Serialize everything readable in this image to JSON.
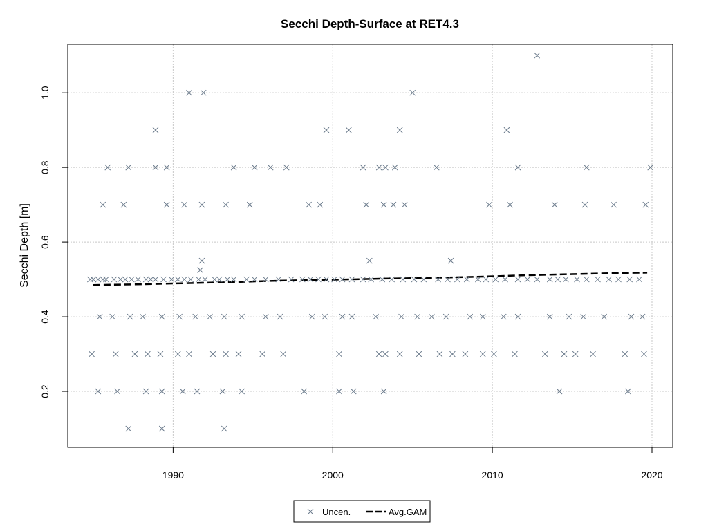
{
  "chart_data": {
    "type": "scatter",
    "title": "Secchi Depth-Surface at RET4.3",
    "xlabel": "",
    "ylabel": "Secchi Depth [m]",
    "xlim": [
      1983.4,
      2021.3
    ],
    "ylim": [
      0.05,
      1.13
    ],
    "x_ticks": [
      1990,
      2000,
      2010,
      2020
    ],
    "y_ticks": [
      0.2,
      0.4,
      0.6,
      0.8,
      1.0
    ],
    "y_tick_labels": [
      "0.2",
      "0.4",
      "0.6",
      "0.8",
      "1.0"
    ],
    "grid": true,
    "legend": {
      "position": "bottom-center",
      "entries": [
        "Uncen.",
        "Avg.GAM"
      ]
    },
    "colors": {
      "points": "#6b7b8c",
      "gam": "#000000",
      "grid": "#c8c8c8"
    },
    "series": [
      {
        "name": "Uncen.",
        "mode": "markers",
        "marker": "x",
        "x": [
          1984.8,
          1985.0,
          1985.3,
          1985.6,
          1985.8,
          1986.3,
          1986.7,
          1987.0,
          1987.4,
          1987.8,
          1988.3,
          1988.6,
          1988.9,
          1989.4,
          1989.9,
          1990.3,
          1990.7,
          1991.1,
          1991.6,
          1992.0,
          1992.6,
          1992.9,
          1993.4,
          1993.8,
          1994.6,
          1995.1,
          1995.8,
          1996.6,
          1997.4,
          1998.1,
          1998.6,
          1999.1,
          1999.6,
          2000.1,
          2000.6,
          2001.2,
          2001.9,
          2002.4,
          2003.1,
          2003.7,
          2004.4,
          2005.1,
          2005.7,
          2006.6,
          2007.2,
          2007.8,
          2008.4,
          2009.1,
          2009.6,
          2010.2,
          2010.8,
          2011.6,
          2012.2,
          2012.8,
          2013.6,
          2014.1,
          2014.6,
          2015.3,
          2015.9,
          2016.6,
          2017.3,
          2017.9,
          2018.6,
          2019.2,
          1985.4,
          1986.2,
          1987.3,
          1988.1,
          1989.3,
          1990.4,
          1991.4,
          1992.3,
          1993.2,
          1994.3,
          1995.8,
          1996.7,
          1998.7,
          1999.5,
          2000.6,
          2001.2,
          2002.7,
          2004.3,
          2005.3,
          2006.2,
          2007.1,
          2008.6,
          2009.4,
          2010.7,
          2011.6,
          2013.6,
          2014.8,
          2015.7,
          2017.0,
          2018.7,
          2019.4,
          1984.9,
          1986.4,
          1987.6,
          1988.4,
          1989.2,
          1990.3,
          1991.0,
          1992.5,
          1993.3,
          1994.1,
          1995.6,
          1996.9,
          2000.4,
          2002.9,
          2003.3,
          2004.2,
          2005.4,
          2006.7,
          2007.5,
          2008.3,
          2009.4,
          2010.1,
          2011.4,
          2013.3,
          2014.5,
          2015.2,
          2016.3,
          2018.3,
          2019.5,
          1985.3,
          1986.5,
          1988.3,
          1989.3,
          1990.6,
          1991.5,
          1993.1,
          1994.3,
          1998.2,
          2000.4,
          2001.3,
          2003.2,
          2014.2,
          2018.5,
          1987.2,
          1989.3,
          1993.2,
          1985.9,
          1987.2,
          1988.9,
          1989.6,
          1993.8,
          1995.1,
          1996.1,
          1997.1,
          2001.9,
          2002.9,
          2003.3,
          2003.9,
          2006.5,
          2011.6,
          2015.9,
          2019.9,
          1985.6,
          1986.9,
          1989.6,
          1990.7,
          1991.8,
          1993.3,
          1994.8,
          1998.5,
          1999.2,
          2002.1,
          2003.2,
          2003.8,
          2004.5,
          2009.8,
          2011.1,
          2013.9,
          2015.8,
          2017.6,
          2019.6,
          1991.8,
          1991.7,
          2007.4,
          2002.3,
          1988.9,
          1999.6,
          2001.0,
          2004.2,
          2010.9,
          1991.0,
          1991.9,
          2005.0,
          2012.8
        ],
        "y": [
          0.5,
          0.5,
          0.5,
          0.5,
          0.5,
          0.5,
          0.5,
          0.5,
          0.5,
          0.5,
          0.5,
          0.5,
          0.5,
          0.5,
          0.5,
          0.5,
          0.5,
          0.5,
          0.5,
          0.5,
          0.5,
          0.5,
          0.5,
          0.5,
          0.5,
          0.5,
          0.5,
          0.5,
          0.5,
          0.5,
          0.5,
          0.5,
          0.5,
          0.5,
          0.5,
          0.5,
          0.5,
          0.5,
          0.5,
          0.5,
          0.5,
          0.5,
          0.5,
          0.5,
          0.5,
          0.5,
          0.5,
          0.5,
          0.5,
          0.5,
          0.5,
          0.5,
          0.5,
          0.5,
          0.5,
          0.5,
          0.5,
          0.5,
          0.5,
          0.5,
          0.5,
          0.5,
          0.5,
          0.5,
          0.4,
          0.4,
          0.4,
          0.4,
          0.4,
          0.4,
          0.4,
          0.4,
          0.4,
          0.4,
          0.4,
          0.4,
          0.4,
          0.4,
          0.4,
          0.4,
          0.4,
          0.4,
          0.4,
          0.4,
          0.4,
          0.4,
          0.4,
          0.4,
          0.4,
          0.4,
          0.4,
          0.4,
          0.4,
          0.4,
          0.4,
          0.3,
          0.3,
          0.3,
          0.3,
          0.3,
          0.3,
          0.3,
          0.3,
          0.3,
          0.3,
          0.3,
          0.3,
          0.3,
          0.3,
          0.3,
          0.3,
          0.3,
          0.3,
          0.3,
          0.3,
          0.3,
          0.3,
          0.3,
          0.3,
          0.3,
          0.3,
          0.3,
          0.3,
          0.3,
          0.2,
          0.2,
          0.2,
          0.2,
          0.2,
          0.2,
          0.2,
          0.2,
          0.2,
          0.2,
          0.2,
          0.2,
          0.2,
          0.2,
          0.1,
          0.1,
          0.1,
          0.8,
          0.8,
          0.8,
          0.8,
          0.8,
          0.8,
          0.8,
          0.8,
          0.8,
          0.8,
          0.8,
          0.8,
          0.8,
          0.8,
          0.8,
          0.8,
          0.7,
          0.7,
          0.7,
          0.7,
          0.7,
          0.7,
          0.7,
          0.7,
          0.7,
          0.7,
          0.7,
          0.7,
          0.7,
          0.7,
          0.7,
          0.7,
          0.7,
          0.7,
          0.7,
          0.55,
          0.525,
          0.55,
          0.55,
          0.9,
          0.9,
          0.9,
          0.9,
          0.9,
          1.0,
          1.0,
          1.0,
          1.1
        ]
      },
      {
        "name": "Avg.GAM",
        "mode": "line",
        "dash": "dashed",
        "x": [
          1985.0,
          1988.0,
          1991.0,
          1994.0,
          1997.0,
          2000.0,
          2003.0,
          2006.0,
          2009.0,
          2012.0,
          2015.0,
          2018.0,
          2019.7
        ],
        "y": [
          0.485,
          0.487,
          0.49,
          0.493,
          0.497,
          0.499,
          0.502,
          0.504,
          0.507,
          0.511,
          0.514,
          0.517,
          0.518
        ]
      }
    ]
  }
}
